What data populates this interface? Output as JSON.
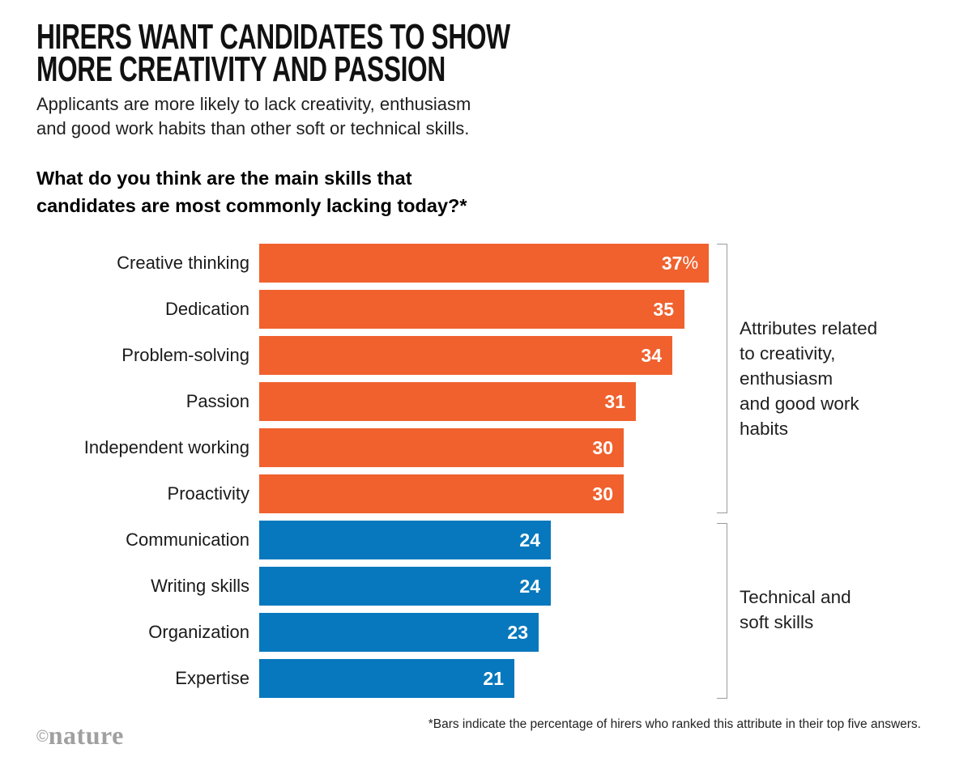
{
  "header": {
    "title": "HIRERS WANT CANDIDATES TO SHOW\nMORE CREATIVITY AND PASSION",
    "subtitle": "Applicants are more likely to lack creativity, enthusiasm\nand good work habits than other soft or technical skills.",
    "question": "What do you think are the main skills that\ncandidates are most commonly lacking today?*"
  },
  "chart_data": {
    "type": "bar",
    "orientation": "horizontal",
    "title": "What do you think are the main skills that candidates are most commonly lacking today?*",
    "xlim": [
      0,
      37
    ],
    "value_unit": "%",
    "grid": false,
    "legend_position": "right-brackets",
    "categories": [
      "Creative thinking",
      "Dedication",
      "Problem-solving",
      "Passion",
      "Independent working",
      "Proactivity",
      "Communication",
      "Writing skills",
      "Organization",
      "Expertise"
    ],
    "values": [
      37,
      35,
      34,
      31,
      30,
      30,
      24,
      24,
      23,
      21
    ],
    "groups": {
      "creativity": {
        "label": "Attributes related\nto creativity,\nenthusiasm\nand good work\nhabits",
        "color": "#F0612E"
      },
      "technical": {
        "label": "Technical and\nsoft skills",
        "color": "#0778BD"
      }
    },
    "bars": [
      {
        "label": "Creative thinking",
        "value": 37,
        "suffix": "%",
        "group": "creativity"
      },
      {
        "label": "Dedication",
        "value": 35,
        "suffix": "",
        "group": "creativity"
      },
      {
        "label": "Problem-solving",
        "value": 34,
        "suffix": "",
        "group": "creativity"
      },
      {
        "label": "Passion",
        "value": 31,
        "suffix": "",
        "group": "creativity"
      },
      {
        "label": "Independent working",
        "value": 30,
        "suffix": "",
        "group": "creativity"
      },
      {
        "label": "Proactivity",
        "value": 30,
        "suffix": "",
        "group": "creativity"
      },
      {
        "label": "Communication",
        "value": 24,
        "suffix": "",
        "group": "technical"
      },
      {
        "label": "Writing skills",
        "value": 24,
        "suffix": "",
        "group": "technical"
      },
      {
        "label": "Organization",
        "value": 23,
        "suffix": "",
        "group": "technical"
      },
      {
        "label": "Expertise",
        "value": 21,
        "suffix": "",
        "group": "technical"
      }
    ]
  },
  "footnote": "*Bars indicate the percentage of hirers who ranked this attribute in their top five answers.",
  "logo": {
    "copyright": "©",
    "wordmark": "nature"
  },
  "colors": {
    "orange": "#F0612E",
    "blue": "#0778BD",
    "bracket_gray": "#9B9B9B",
    "background": "#FFFFFF"
  }
}
